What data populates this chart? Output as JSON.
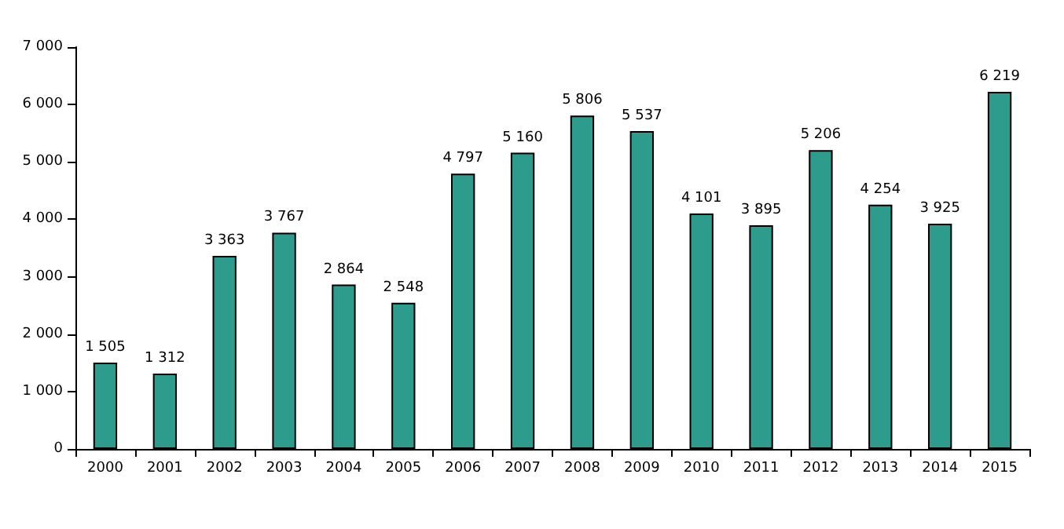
{
  "chart_data": {
    "type": "bar",
    "categories": [
      "2000",
      "2001",
      "2002",
      "2003",
      "2004",
      "2005",
      "2006",
      "2007",
      "2008",
      "2009",
      "2010",
      "2011",
      "2012",
      "2013",
      "2014",
      "2015"
    ],
    "values": [
      1505,
      1312,
      3363,
      3767,
      2864,
      2548,
      4797,
      5160,
      5806,
      5537,
      4101,
      3895,
      5206,
      4254,
      3925,
      6219
    ],
    "value_labels": [
      "1 505",
      "1 312",
      "3 363",
      "3 767",
      "2 864",
      "2 548",
      "4 797",
      "5 160",
      "5 806",
      "5 537",
      "4 101",
      "3 895",
      "5 206",
      "4 254",
      "3 925",
      "6 219"
    ],
    "color": "#2e9c8c",
    "ylim": [
      0,
      7000
    ],
    "yticks": [
      {
        "value": 0,
        "label": "0"
      },
      {
        "value": 1000,
        "label": "1 000"
      },
      {
        "value": 2000,
        "label": "2 000"
      },
      {
        "value": 3000,
        "label": "3 000"
      },
      {
        "value": 4000,
        "label": "4 000"
      },
      {
        "value": 5000,
        "label": "5 000"
      },
      {
        "value": 6000,
        "label": "6 000"
      },
      {
        "value": 7000,
        "label": "7 000"
      }
    ],
    "grid": false
  }
}
